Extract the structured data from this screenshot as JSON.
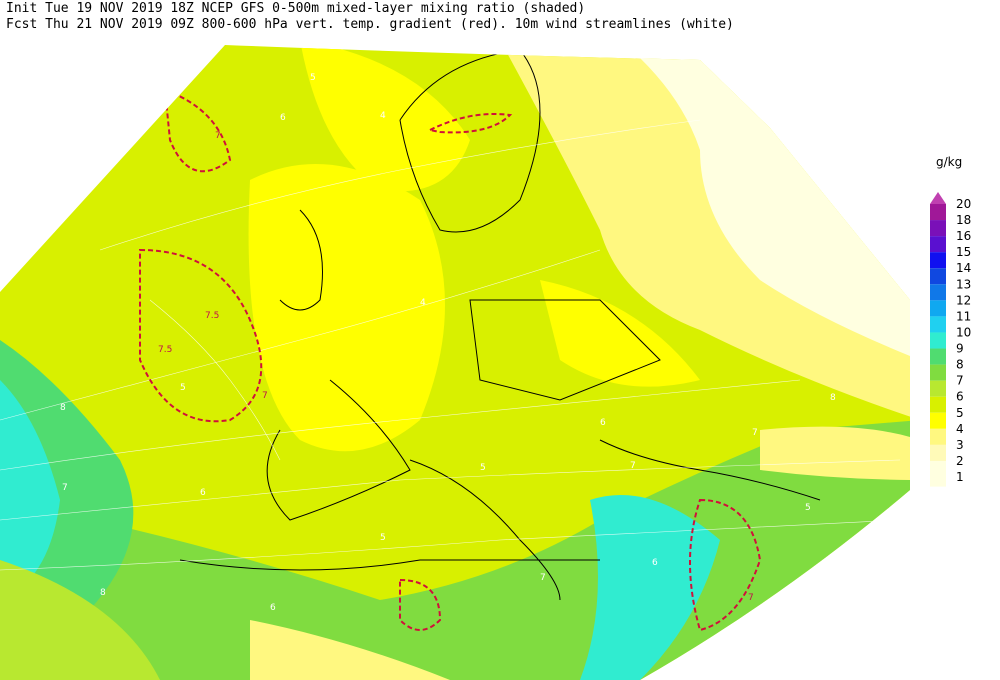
{
  "header": {
    "line1": "Init  Tue 19 NOV 2019 18Z  NCEP GFS 0-500m mixed-layer mixing ratio (shaded)",
    "line2": "Fcst Thu 21 NOV 2019 09Z  800-600 hPa vert. temp. gradient (red). 10m wind streamlines (white)"
  },
  "legend": {
    "unit": "g/kg",
    "levels": [
      "20",
      "18",
      "16",
      "15",
      "14",
      "13",
      "12",
      "11",
      "10",
      "9",
      "8",
      "7",
      "6",
      "5",
      "4",
      "3",
      "2",
      "1"
    ],
    "colors": [
      "#c040b0",
      "#a01898",
      "#7a10b8",
      "#5a10d0",
      "#1010f0",
      "#1048e0",
      "#1078e8",
      "#10a8f0",
      "#20d0f0",
      "#30ecd0",
      "#50dc70",
      "#80dc40",
      "#b8e830",
      "#d8f000",
      "#ffff00",
      "#fff880",
      "#fffab8",
      "#ffffe0"
    ]
  },
  "contour_labels": [
    "5",
    "4",
    "6",
    "7",
    "7.5",
    "7.5",
    "5",
    "7",
    "6",
    "8",
    "7",
    "8",
    "6",
    "5",
    "7",
    "5",
    "4",
    "6",
    "7",
    "6",
    "8",
    "7",
    "5",
    "7"
  ]
}
